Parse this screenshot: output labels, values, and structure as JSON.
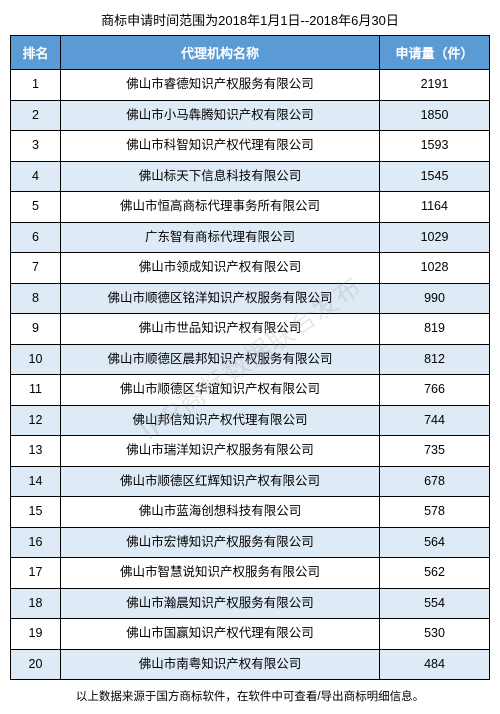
{
  "title": "商标申请时间范围为2018年1月1日--2018年6月30日",
  "columns": {
    "rank": "排名",
    "name": "代理机构名称",
    "count": "申请量（件）"
  },
  "rows": [
    {
      "rank": "1",
      "name": "佛山市睿德知识产权服务有限公司",
      "count": "2191"
    },
    {
      "rank": "2",
      "name": "佛山市小马犇腾知识产权有限公司",
      "count": "1850"
    },
    {
      "rank": "3",
      "name": "佛山市科智知识产权代理有限公司",
      "count": "1593"
    },
    {
      "rank": "4",
      "name": "佛山标天下信息科技有限公司",
      "count": "1545"
    },
    {
      "rank": "5",
      "name": "佛山市恒高商标代理事务所有限公司",
      "count": "1164"
    },
    {
      "rank": "6",
      "name": "广东智有商标代理有限公司",
      "count": "1029"
    },
    {
      "rank": "7",
      "name": "佛山市领成知识产权有限公司",
      "count": "1028"
    },
    {
      "rank": "8",
      "name": "佛山市顺德区铭洋知识产权服务有限公司",
      "count": "990"
    },
    {
      "rank": "9",
      "name": "佛山市世品知识产权有限公司",
      "count": "819"
    },
    {
      "rank": "10",
      "name": "佛山市顺德区晨邦知识产权服务有限公司",
      "count": "812"
    },
    {
      "rank": "11",
      "name": "佛山市顺德区华谊知识产权有限公司",
      "count": "766"
    },
    {
      "rank": "12",
      "name": "佛山邦信知识产权代理有限公司",
      "count": "744"
    },
    {
      "rank": "13",
      "name": "佛山市瑞洋知识产权服务有限公司",
      "count": "735"
    },
    {
      "rank": "14",
      "name": "佛山市顺德区红辉知识产权有限公司",
      "count": "678"
    },
    {
      "rank": "15",
      "name": "佛山市蓝海创想科技有限公司",
      "count": "578"
    },
    {
      "rank": "16",
      "name": "佛山市宏博知识产权服务有限公司",
      "count": "564"
    },
    {
      "rank": "17",
      "name": "佛山市智慧说知识产权服务有限公司",
      "count": "562"
    },
    {
      "rank": "18",
      "name": "佛山市瀚晨知识产权服务有限公司",
      "count": "554"
    },
    {
      "rank": "19",
      "name": "佛山市国赢知识产权代理有限公司",
      "count": "530"
    },
    {
      "rank": "20",
      "name": "佛山市南粤知识产权有限公司",
      "count": "484"
    }
  ],
  "footer_note": "以上数据来源于国方商标软件，在软件中可查看/导出商标明细信息。",
  "watermark_text": "IPR商标数据联合发布",
  "style": {
    "header_bg": "#5b9bd5",
    "header_fg": "#ffffff",
    "row_even_bg": "#deeaf6",
    "row_odd_bg": "#ffffff",
    "border_color": "#000000"
  }
}
